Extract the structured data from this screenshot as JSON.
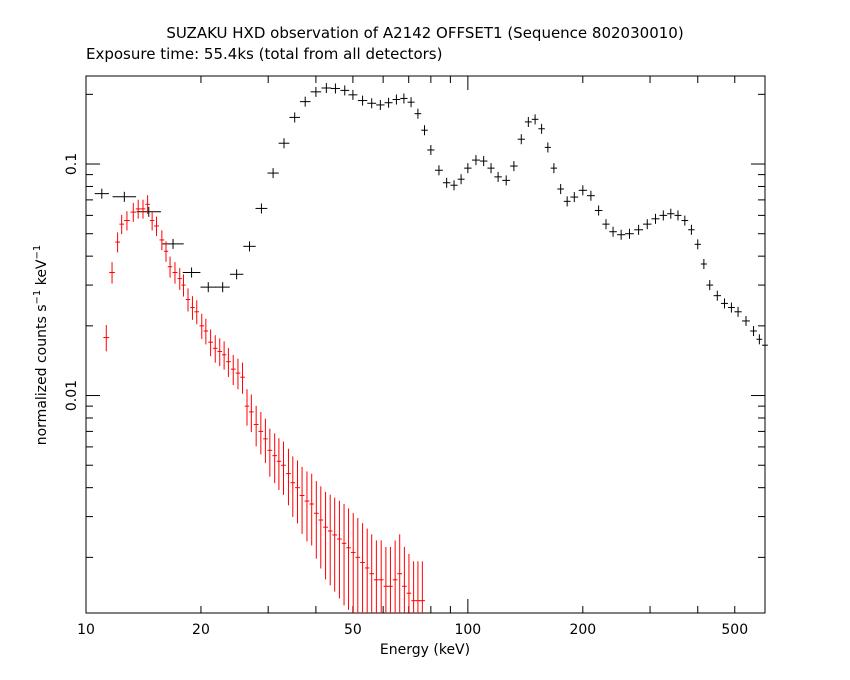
{
  "chart_data": {
    "type": "scatter",
    "title": "SUZAKU HXD observation of A2142 OFFSET1 (Sequence 802030010)",
    "subtitle": "Exposure time: 55.4ks (total from all detectors)",
    "xlabel": "Energy (keV)",
    "ylabel_main": "normalized counts s",
    "ylabel_mid": " keV",
    "ylabel_exp": "−1",
    "x_scale": "log",
    "y_scale": "log",
    "xlim": [
      10,
      600
    ],
    "ylim": [
      0.00115,
      0.24
    ],
    "x_ticks": [
      10,
      20,
      50,
      100,
      200,
      500
    ],
    "x_tick_labels": [
      "10",
      "20",
      "50",
      "100",
      "200",
      "500"
    ],
    "y_ticks": [
      0.01,
      0.1
    ],
    "y_tick_labels": [
      "0.01",
      "0.1"
    ],
    "grid": false,
    "series": [
      {
        "color": "#000000",
        "points": [
          [
            11.0,
            0.0745
          ],
          [
            12.6,
            0.0722
          ],
          [
            14.6,
            0.0622
          ],
          [
            16.9,
            0.0452
          ],
          [
            18.9,
            0.034
          ],
          [
            20.9,
            0.0294
          ],
          [
            22.8,
            0.0294
          ],
          [
            24.8,
            0.0334
          ],
          [
            26.8,
            0.0441
          ],
          [
            28.8,
            0.0643
          ],
          [
            30.9,
            0.0914
          ],
          [
            33.0,
            0.123
          ],
          [
            35.2,
            0.159
          ],
          [
            37.5,
            0.186
          ],
          [
            40.0,
            0.205
          ],
          [
            42.6,
            0.213
          ],
          [
            45.0,
            0.212
          ],
          [
            47.6,
            0.208
          ],
          [
            50.0,
            0.199
          ],
          [
            53.0,
            0.188
          ],
          [
            56.0,
            0.183
          ],
          [
            59.0,
            0.18
          ],
          [
            62.0,
            0.184
          ],
          [
            65.0,
            0.19
          ],
          [
            68.0,
            0.192
          ],
          [
            71.0,
            0.185
          ],
          [
            74.0,
            0.165
          ],
          [
            77.0,
            0.14
          ],
          [
            80.0,
            0.115
          ],
          [
            84.0,
            0.094
          ],
          [
            88.0,
            0.083
          ],
          [
            92.0,
            0.081
          ],
          [
            96.0,
            0.086
          ],
          [
            100.0,
            0.096
          ],
          [
            105.0,
            0.104
          ],
          [
            110.0,
            0.103
          ],
          [
            115.0,
            0.096
          ],
          [
            120.0,
            0.088
          ],
          [
            126.0,
            0.085
          ],
          [
            132.0,
            0.098
          ],
          [
            138.0,
            0.128
          ],
          [
            144.0,
            0.152
          ],
          [
            150.0,
            0.156
          ],
          [
            156.0,
            0.142
          ],
          [
            162.0,
            0.118
          ],
          [
            168.0,
            0.096
          ],
          [
            175.0,
            0.078
          ],
          [
            182.0,
            0.069
          ],
          [
            190.0,
            0.072
          ],
          [
            200.0,
            0.077
          ],
          [
            210.0,
            0.073
          ],
          [
            220.0,
            0.063
          ],
          [
            230.0,
            0.055
          ],
          [
            240.0,
            0.051
          ],
          [
            252.0,
            0.0495
          ],
          [
            265.0,
            0.05
          ],
          [
            280.0,
            0.052
          ],
          [
            295.0,
            0.055
          ],
          [
            310.0,
            0.058
          ],
          [
            325.0,
            0.06
          ],
          [
            340.0,
            0.061
          ],
          [
            355.0,
            0.06
          ],
          [
            370.0,
            0.057
          ],
          [
            385.0,
            0.052
          ],
          [
            400.0,
            0.045
          ],
          [
            415.0,
            0.037
          ],
          [
            430.0,
            0.03
          ],
          [
            450.0,
            0.027
          ],
          [
            470.0,
            0.025
          ],
          [
            490.0,
            0.024
          ],
          [
            510.0,
            0.023
          ],
          [
            535.0,
            0.021
          ],
          [
            560.0,
            0.019
          ],
          [
            580.0,
            0.0175
          ],
          [
            600.0,
            0.0165
          ]
        ]
      },
      {
        "color": "#ff0000",
        "points": [
          [
            11.3,
            0.0178
          ],
          [
            11.7,
            0.034
          ],
          [
            12.1,
            0.046
          ],
          [
            12.4,
            0.055
          ],
          [
            12.8,
            0.057
          ],
          [
            13.3,
            0.062
          ],
          [
            13.7,
            0.064
          ],
          [
            14.1,
            0.064
          ],
          [
            14.5,
            0.067
          ],
          [
            14.9,
            0.057
          ],
          [
            15.3,
            0.054
          ],
          [
            15.8,
            0.047
          ],
          [
            16.2,
            0.042
          ],
          [
            16.6,
            0.036
          ],
          [
            17.1,
            0.034
          ],
          [
            17.6,
            0.032
          ],
          [
            18.0,
            0.03
          ],
          [
            18.5,
            0.026
          ],
          [
            19.0,
            0.024
          ],
          [
            19.5,
            0.023
          ],
          [
            20.1,
            0.02
          ],
          [
            20.6,
            0.019
          ],
          [
            21.2,
            0.017
          ],
          [
            21.8,
            0.016
          ],
          [
            22.4,
            0.0155
          ],
          [
            23.0,
            0.015
          ],
          [
            23.6,
            0.014
          ],
          [
            24.3,
            0.013
          ],
          [
            25.0,
            0.0125
          ],
          [
            25.7,
            0.012
          ],
          [
            26.4,
            0.009
          ],
          [
            27.1,
            0.0085
          ],
          [
            27.9,
            0.0075
          ],
          [
            28.7,
            0.007
          ],
          [
            29.5,
            0.0065
          ],
          [
            30.3,
            0.0058
          ],
          [
            31.2,
            0.0055
          ],
          [
            32.0,
            0.0052
          ],
          [
            32.9,
            0.005
          ],
          [
            33.9,
            0.0046
          ],
          [
            34.8,
            0.0042
          ],
          [
            35.8,
            0.004
          ],
          [
            36.8,
            0.0037
          ],
          [
            37.9,
            0.0035
          ],
          [
            39.0,
            0.0034
          ],
          [
            40.1,
            0.0031
          ],
          [
            41.2,
            0.0029
          ],
          [
            42.4,
            0.0027
          ],
          [
            43.6,
            0.0026
          ],
          [
            44.8,
            0.0025
          ],
          [
            46.1,
            0.0024
          ],
          [
            47.4,
            0.0023
          ],
          [
            48.7,
            0.0022
          ],
          [
            50.1,
            0.0021
          ],
          [
            51.5,
            0.002
          ],
          [
            53.0,
            0.0019
          ],
          [
            54.5,
            0.0018
          ],
          [
            56.0,
            0.0017
          ],
          [
            57.6,
            0.0016
          ],
          [
            59.3,
            0.0016
          ],
          [
            61.0,
            0.0015
          ],
          [
            62.7,
            0.0015
          ],
          [
            64.5,
            0.0016
          ],
          [
            66.3,
            0.0017
          ],
          [
            68.2,
            0.0015
          ],
          [
            70.1,
            0.0014
          ],
          [
            72.1,
            0.0013
          ],
          [
            74.0,
            0.0013
          ],
          [
            76.0,
            0.0013
          ]
        ]
      }
    ]
  }
}
